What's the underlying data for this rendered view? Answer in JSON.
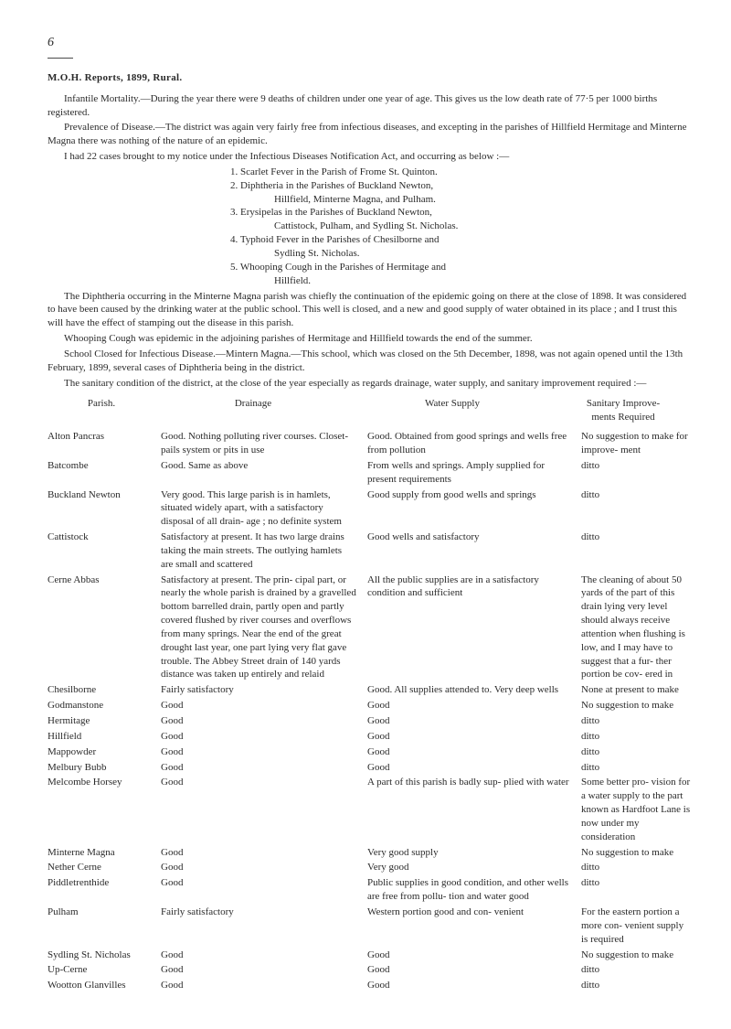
{
  "page_number": "6",
  "title": "M.O.H. Reports, 1899, Rural.",
  "intro": {
    "p1": "Infantile Mortality.—During the year there were 9 deaths of children under one year of age. This gives us the low death rate of 77·5 per 1000 births registered.",
    "p2": "Prevalence of Disease.—The district was again very fairly free from infectious diseases, and excepting in the parishes of Hillfield Hermitage and Minterne Magna there was nothing of the nature of an epidemic.",
    "p3": "I had 22 cases brought to my notice under the Infectious Diseases Notification Act, and occurring as below :—",
    "list": [
      {
        "n": "1.",
        "t": "Scarlet Fever in the Parish of Frome St. Quinton."
      },
      {
        "n": "2.",
        "t": "Diphtheria in the Parishes of Buckland Newton,",
        "sub": "Hillfield, Minterne Magna, and Pulham."
      },
      {
        "n": "3.",
        "t": "Erysipelas in the Parishes of Buckland Newton,",
        "sub": "Cattistock, Pulham, and Sydling St. Nicholas."
      },
      {
        "n": "4.",
        "t": "Typhoid Fever in the Parishes of Chesilborne and",
        "sub": "Sydling St. Nicholas."
      },
      {
        "n": "5.",
        "t": "Whooping Cough in the Parishes of Hermitage and",
        "sub": "Hillfield."
      }
    ],
    "p4": "The Diphtheria occurring in the Minterne Magna parish was chiefly the continuation of the epidemic going on there at the close of 1898. It was considered to have been caused by the drinking water at the public school. This well is closed, and a new and good supply of water obtained in its place ; and I trust this will have the effect of stamping out the disease in this parish.",
    "p5": "Whooping Cough was epidemic in the adjoining parishes of Hermitage and Hillfield towards the end of the summer.",
    "p6": "School Closed for Infectious Disease.—Mintern Magna.—This school, which was closed on the 5th December, 1898, was not again opened until the 13th February, 1899, several cases of Diphtheria being in the district.",
    "p7": "The sanitary condition of the district, at the close of the year especially as regards drainage, water supply, and sanitary improvement required :—"
  },
  "headers": {
    "parish": "Parish.",
    "drainage": "Drainage",
    "water": "Water Supply",
    "sanitary1": "Sanitary Improve-",
    "sanitary2": "ments Required"
  },
  "rows": [
    {
      "p": "Alton Pancras",
      "d": "Good. Nothing polluting river courses. Closet-pails system or pits in use",
      "w": "Good. Obtained from good springs and wells free from pollution",
      "s": "No suggestion to make for improve- ment"
    },
    {
      "p": "Batcombe",
      "d": "Good. Same as above",
      "w": "From wells and springs. Amply supplied for present requirements",
      "s": "ditto"
    },
    {
      "p": "Buckland Newton",
      "d": "Very good. This large parish is in hamlets, situated widely apart, with a satisfactory disposal of all drain- age ; no definite system",
      "w": "Good supply from good wells and springs",
      "s": "ditto"
    },
    {
      "p": "Cattistock",
      "d": "Satisfactory at present. It has two large drains taking the main streets. The outlying hamlets are small and scattered",
      "w": "Good wells and satisfactory",
      "s": "ditto"
    },
    {
      "p": "Cerne Abbas",
      "d": "Satisfactory at present. The prin- cipal part, or nearly the whole parish is drained by a gravelled bottom barrelled drain, partly open and partly covered flushed by river courses and overflows from many springs. Near the end of the great drought last year, one part lying very flat gave trouble. The Abbey Street drain of 140 yards distance was taken up entirely and relaid",
      "w": "All the public supplies are in a satisfactory condition and sufficient",
      "s": "The cleaning of about 50 yards of the part of this drain lying very level should always receive attention when flushing is low, and I may have to suggest that a fur- ther portion be cov- ered in"
    },
    {
      "p": "Chesilborne",
      "d": "Fairly satisfactory",
      "w": "Good. All supplies attended to. Very deep wells",
      "s": "None at present to make"
    },
    {
      "p": "Godmanstone",
      "d": "Good",
      "w": "Good",
      "s": "No suggestion to make"
    },
    {
      "p": "Hermitage",
      "d": "Good",
      "w": "Good",
      "s": "ditto"
    },
    {
      "p": "Hillfield",
      "d": "Good",
      "w": "Good",
      "s": "ditto"
    },
    {
      "p": "Mappowder",
      "d": "Good",
      "w": "Good",
      "s": "ditto"
    },
    {
      "p": "Melbury Bubb",
      "d": "Good",
      "w": "Good",
      "s": "ditto"
    },
    {
      "p": "Melcombe Horsey",
      "d": "Good",
      "w": "A part of this parish is badly sup- plied with water",
      "s": "Some better pro- vision for a water supply to the part known as Hardfoot Lane is now under my consideration"
    },
    {
      "p": "Minterne Magna",
      "d": "Good",
      "w": "Very good supply",
      "s": "No suggestion to make"
    },
    {
      "p": "Nether Cerne",
      "d": "Good",
      "w": "Very good",
      "s": "ditto"
    },
    {
      "p": "Piddletrenthide",
      "d": "Good",
      "w": "Public supplies in good condition, and other wells are free from pollu- tion and water good",
      "s": "ditto"
    },
    {
      "p": "Pulham",
      "d": "Fairly satisfactory",
      "w": "Western portion good and con- venient",
      "s": "For the eastern portion a more con- venient supply is required"
    },
    {
      "p": "Sydling St. Nicholas",
      "d": "Good",
      "w": "Good",
      "s": "No suggestion to make"
    },
    {
      "p": "Up-Cerne",
      "d": "Good",
      "w": "Good",
      "s": "ditto"
    },
    {
      "p": "Wootton Glanvilles",
      "d": "Good",
      "w": "Good",
      "s": "ditto"
    }
  ],
  "styling": {
    "background_color": "#ffffff",
    "text_color": "#2a2a2a",
    "base_font_size_pt": 8,
    "title_font_weight": "bold",
    "pagenum_font_style": "italic",
    "underline_color": "#4a4a4a"
  }
}
